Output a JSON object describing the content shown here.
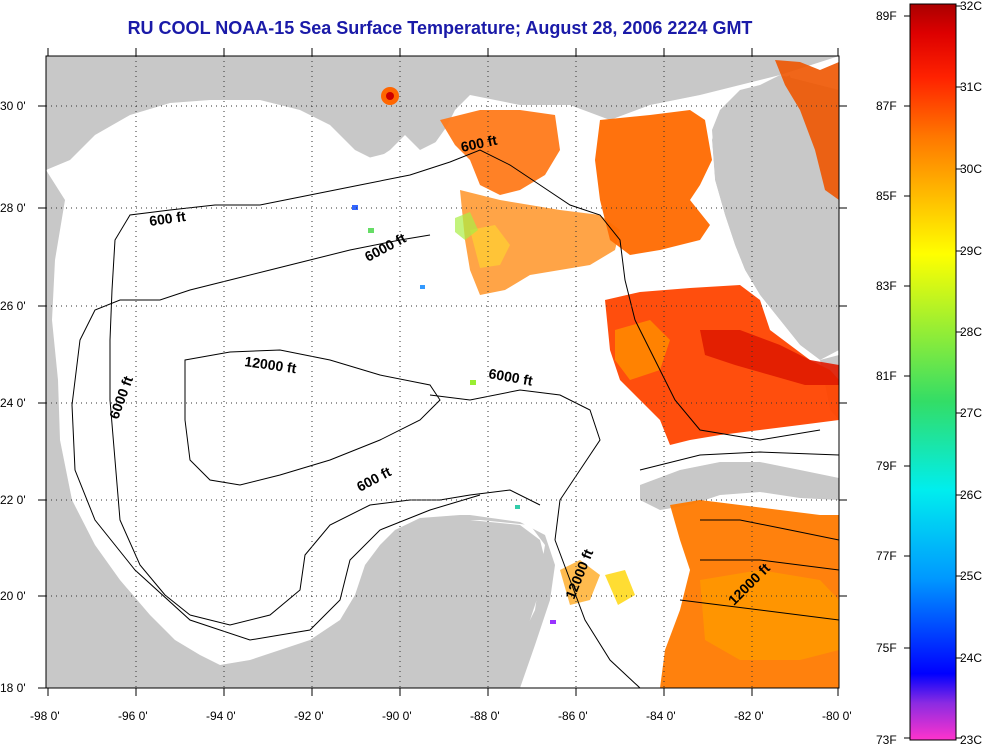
{
  "title": "RU COOL  NOAA-15  Sea Surface Temperature;  August 28, 2006 2224 GMT",
  "map": {
    "lon_range": [
      -98,
      -80
    ],
    "lat_range": [
      18,
      31
    ],
    "x_ticks": [
      "-98 0'",
      "-96 0'",
      "-94 0'",
      "-92 0'",
      "-90 0'",
      "-88 0'",
      "-86 0'",
      "-84 0'",
      "-82 0'",
      "-80 0'"
    ],
    "y_ticks": [
      "30 0'",
      "28 0'",
      "26 0'",
      "24 0'",
      "22 0'",
      "20 0'",
      "18 0'"
    ],
    "grid": "dotted",
    "contour_labels": [
      "600 ft",
      "600 ft",
      "6000 ft",
      "6000 ft",
      "6000 ft",
      "12000 ft",
      "600 ft",
      "12000 ft",
      "12000 ft"
    ],
    "colors": {
      "land": "#c8c8c8",
      "water_no_data": "#ffffff",
      "warm_gulf": "#ff6a00",
      "loop_current": "#ff2200",
      "gulf_stream": "#cc0000"
    }
  },
  "colorbar": {
    "fahrenheit": [
      "89F",
      "87F",
      "85F",
      "83F",
      "81F",
      "79F",
      "77F",
      "75F",
      "73F"
    ],
    "celsius": [
      "32C",
      "31C",
      "30C",
      "29C",
      "28C",
      "27C",
      "26C",
      "25C",
      "24C",
      "23C"
    ],
    "range_c": [
      23,
      32
    ],
    "colors": [
      "#ff33cc",
      "#8b2be2",
      "#0000ff",
      "#0099ff",
      "#00eeee",
      "#33dd66",
      "#99ee33",
      "#ffff00",
      "#ffbb00",
      "#ff7700",
      "#ff3300",
      "#ff0000",
      "#aa0000"
    ]
  }
}
